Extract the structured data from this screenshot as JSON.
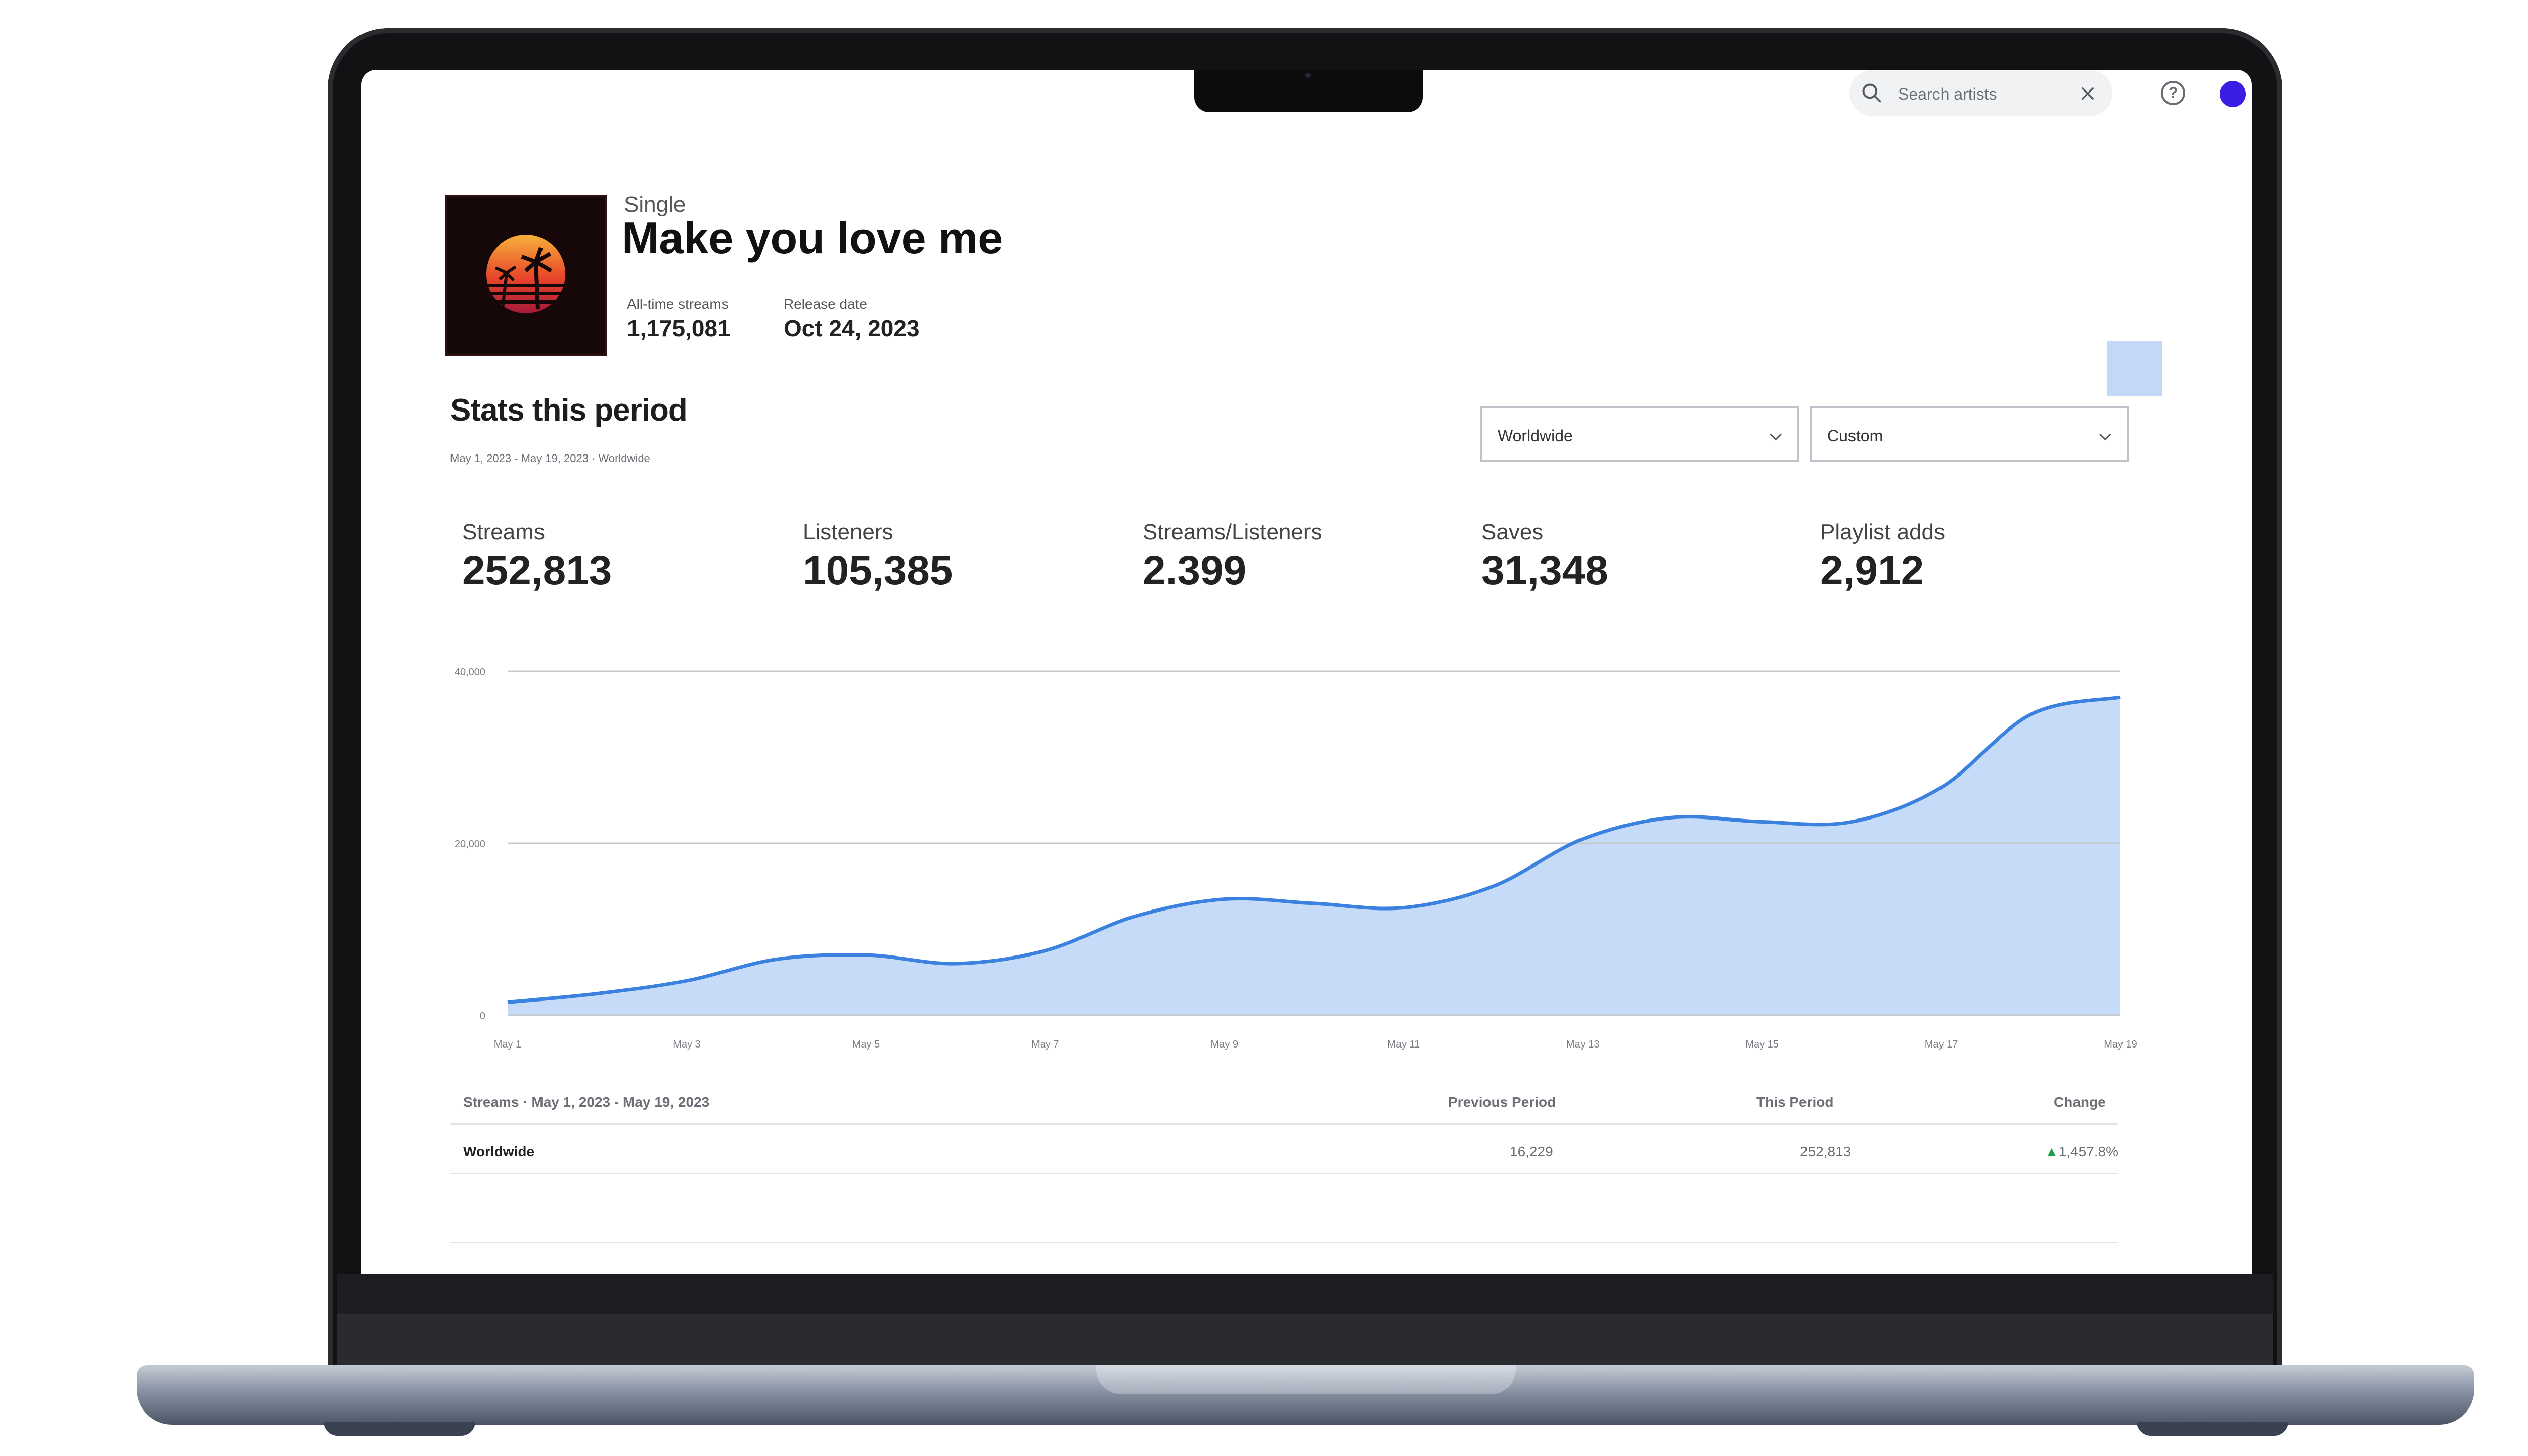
{
  "topbar": {
    "search_placeholder": "Search artists"
  },
  "release": {
    "type": "Single",
    "title": "Make you love me",
    "alltime_label": "All-time streams",
    "alltime_value": "1,175,081",
    "release_date_label": "Release date",
    "release_date_value": "Oct 24, 2023"
  },
  "section": {
    "title": "Stats this period",
    "subtitle": "May 1, 2023 - May 19, 2023 · Worldwide"
  },
  "filters": {
    "region": "Worldwide",
    "period": "Custom"
  },
  "stats": [
    {
      "label": "Streams",
      "value": "252,813"
    },
    {
      "label": "Listeners",
      "value": "105,385"
    },
    {
      "label": "Streams/Listeners",
      "value": "2.399"
    },
    {
      "label": "Saves",
      "value": "31,348"
    },
    {
      "label": "Playlist adds",
      "value": "2,912"
    }
  ],
  "chart_data": {
    "type": "area",
    "x": [
      "May 1",
      "May 2",
      "May 3",
      "May 4",
      "May 5",
      "May 6",
      "May 7",
      "May 8",
      "May 9",
      "May 10",
      "May 11",
      "May 12",
      "May 13",
      "May 14",
      "May 15",
      "May 16",
      "May 17",
      "May 18",
      "May 19"
    ],
    "x_tick_labels": [
      "May 1",
      "May 3",
      "May 5",
      "May 7",
      "May 9",
      "May 11",
      "May 13",
      "May 15",
      "May 17",
      "May 19"
    ],
    "y_tick_labels": [
      "0",
      "20,000",
      "40,000"
    ],
    "ylim": [
      0,
      40000
    ],
    "series": [
      {
        "values": [
          1500,
          2500,
          4000,
          6500,
          7000,
          6000,
          7500,
          11500,
          13500,
          13000,
          12500,
          15000,
          20500,
          23000,
          22500,
          22500,
          26500,
          35000,
          37000
        ]
      }
    ],
    "grid": true,
    "colors": {
      "line": "#3b82e0",
      "fill": "#c5dbf7",
      "grid": "#c7c9cc"
    }
  },
  "table": {
    "title": "Streams · May 1, 2023 - May 19, 2023",
    "col_previous": "Previous Period",
    "col_this": "This Period",
    "col_change": "Change",
    "rows": [
      {
        "region": "Worldwide",
        "previous": "16,229",
        "this": "252,813",
        "change": "1,457.8%"
      }
    ]
  },
  "colors": {
    "accent": "#3b1ee3"
  }
}
